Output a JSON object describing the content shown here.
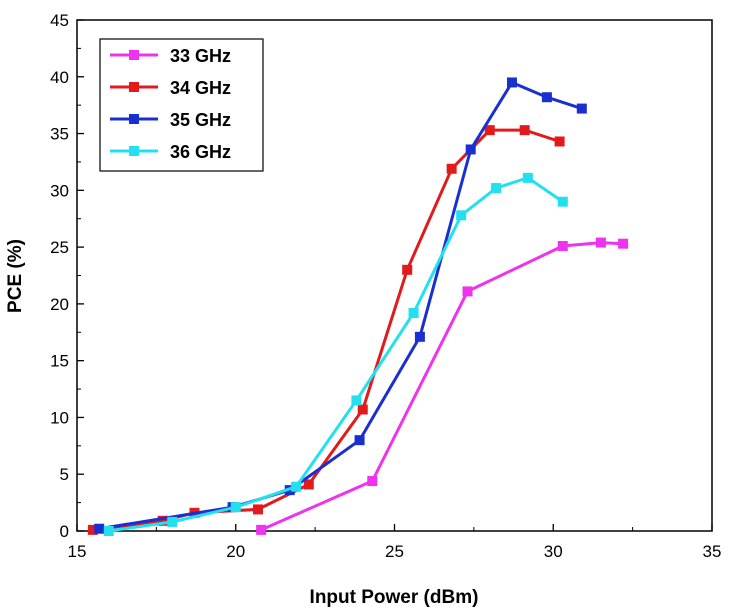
{
  "chart_data": {
    "type": "line",
    "title": "",
    "xlabel": "Input Power (dBm)",
    "ylabel": "PCE (%)",
    "xlim": [
      15,
      35
    ],
    "ylim": [
      0,
      45
    ],
    "xticks": [
      15,
      20,
      25,
      30,
      35
    ],
    "yticks": [
      0,
      5,
      10,
      15,
      20,
      25,
      30,
      35,
      40,
      45
    ],
    "grid": false,
    "legend_position": "top-left",
    "series": [
      {
        "name": "33 GHz",
        "color": "#ee33ee",
        "x": [
          20.8,
          24.3,
          27.3,
          30.3,
          31.5,
          32.2
        ],
        "y": [
          0.1,
          4.4,
          21.1,
          25.1,
          25.4,
          25.3
        ]
      },
      {
        "name": "34 GHz",
        "color": "#e31a1c",
        "x": [
          15.5,
          17.7,
          18.7,
          20.7,
          22.3,
          24.0,
          25.4,
          26.8,
          28.0,
          29.1,
          30.2
        ],
        "y": [
          0.1,
          0.9,
          1.6,
          1.9,
          4.1,
          10.7,
          23.0,
          31.9,
          35.3,
          35.3,
          34.3
        ]
      },
      {
        "name": "35 GHz",
        "color": "#1a2fd0",
        "x": [
          15.7,
          19.9,
          21.7,
          23.9,
          25.8,
          27.4,
          28.7,
          29.8,
          30.9
        ],
        "y": [
          0.2,
          2.1,
          3.6,
          8.0,
          17.1,
          33.6,
          39.5,
          38.2,
          37.2
        ]
      },
      {
        "name": "36 GHz",
        "color": "#22e0f0",
        "x": [
          16.0,
          18.0,
          20.0,
          21.9,
          23.8,
          25.6,
          27.1,
          28.2,
          29.2,
          30.3
        ],
        "y": [
          0.0,
          0.8,
          2.1,
          3.9,
          11.5,
          19.2,
          27.8,
          30.2,
          31.1,
          29.0
        ]
      }
    ]
  }
}
